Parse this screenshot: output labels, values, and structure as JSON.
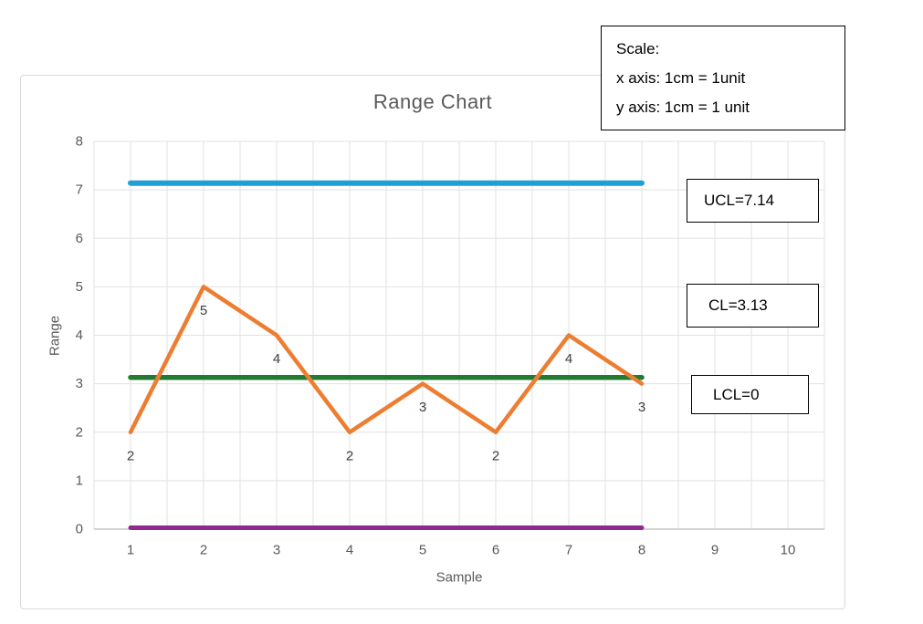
{
  "chart": {
    "title": "Range Chart",
    "x_axis_title": "Sample",
    "y_axis_title": "Range"
  },
  "annotations": {
    "scale_line1": "Scale:",
    "scale_line2": "x axis: 1cm = 1unit",
    "scale_line3": "y axis: 1cm = 1 unit",
    "ucl": "UCL=7.14",
    "cl": "CL=3.13",
    "lcl": "LCL=0"
  },
  "colors": {
    "series": "#ED7D31",
    "gridline": "#E2E2E2",
    "axis_line": "#C6C6C6",
    "tick_text": "#595959",
    "data_label_text": "#404040",
    "chart_border": "#D9D9D9",
    "annotation_border": "#000000",
    "annotation_bg": "#FFFFFF"
  },
  "chart_data": {
    "type": "line",
    "title": "Range Chart",
    "xlabel": "Sample",
    "ylabel": "Range",
    "x": [
      1,
      2,
      3,
      4,
      5,
      6,
      7,
      8
    ],
    "series": [
      {
        "name": "Range",
        "values": [
          2,
          5,
          4,
          2,
          3,
          2,
          4,
          3
        ]
      }
    ],
    "data_labels": [
      "2",
      "5",
      "4",
      "2",
      "3",
      "2",
      "4",
      "3"
    ],
    "control_lines": [
      {
        "name": "UCL",
        "value": 7.14,
        "color": "#1E9FD6",
        "x_start": 1,
        "x_end": 8,
        "label": "UCL=7.14"
      },
      {
        "name": "CL",
        "value": 3.13,
        "color": "#207B31",
        "x_start": 1,
        "x_end": 8,
        "label": "CL=3.13"
      },
      {
        "name": "LCL",
        "value": 0,
        "color": "#8F2B8F",
        "x_start": 1,
        "x_end": 8,
        "label": "LCL=0"
      }
    ],
    "xlim": [
      0.5,
      10.5
    ],
    "ylim": [
      0,
      8
    ],
    "x_ticks": [
      1,
      2,
      3,
      4,
      5,
      6,
      7,
      8,
      9,
      10
    ],
    "y_ticks": [
      0,
      1,
      2,
      3,
      4,
      5,
      6,
      7,
      8
    ],
    "x_grid_step": 0.5,
    "grid": true,
    "legend": "none"
  }
}
